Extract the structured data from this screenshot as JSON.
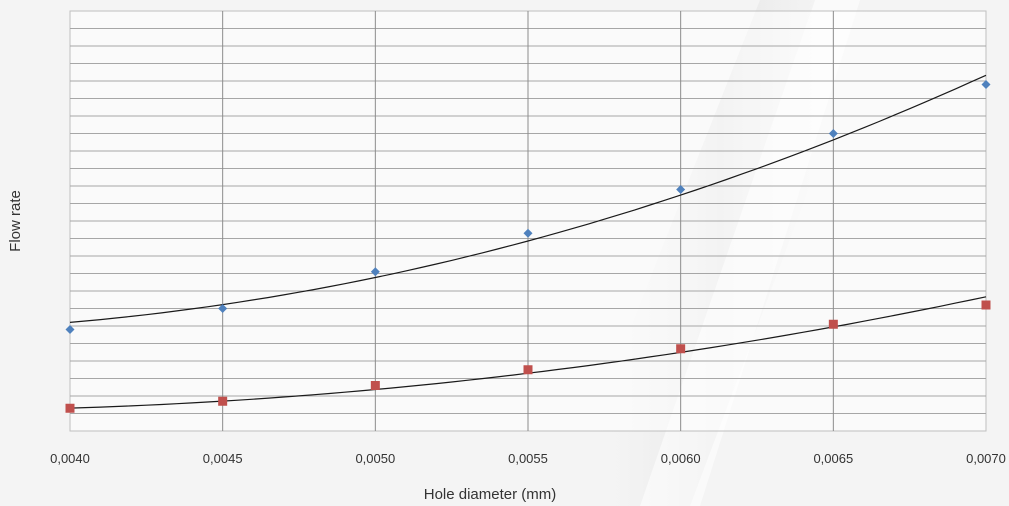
{
  "chart_data": {
    "type": "scatter",
    "xlabel": "Hole diameter (mm)",
    "ylabel": "Flow rate",
    "x_tick_labels": [
      "0,0040",
      "0,0045",
      "0,0050",
      "0,0055",
      "0,0060",
      "0,0065",
      "0,0070"
    ],
    "xlim": [
      0.004,
      0.007
    ],
    "ylim": [
      0,
      24
    ],
    "grid": true,
    "trendline": "polynomial",
    "series": [
      {
        "x": [
          0.004,
          0.0045,
          0.005,
          0.0055,
          0.006,
          0.0065,
          0.007
        ],
        "y": [
          5.8,
          7.0,
          9.1,
          11.3,
          13.8,
          17.0,
          19.8
        ],
        "trend_y": [
          6.0,
          7.4,
          9.0,
          10.9,
          13.3,
          16.3,
          20.6
        ],
        "marker": "diamond",
        "color": "#4f81bd"
      },
      {
        "x": [
          0.004,
          0.0045,
          0.005,
          0.0055,
          0.006,
          0.0065,
          0.007
        ],
        "y": [
          1.3,
          1.7,
          2.6,
          3.5,
          4.7,
          6.1,
          7.2
        ],
        "trend_y": [
          1.3,
          1.7,
          2.4,
          3.3,
          4.5,
          5.9,
          7.7
        ],
        "marker": "square",
        "color": "#c0504d"
      }
    ]
  }
}
